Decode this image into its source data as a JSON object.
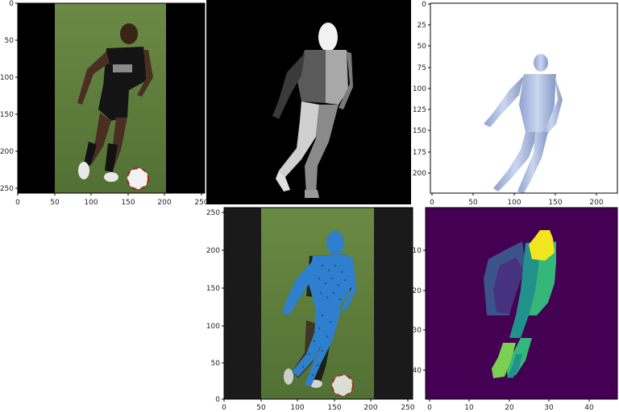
{
  "panels": [
    {
      "id": "photo",
      "x_ticks": [
        "0",
        "50",
        "100",
        "150",
        "200",
        "250"
      ],
      "y_ticks": [
        "0",
        "50",
        "100",
        "150",
        "200",
        "250"
      ]
    },
    {
      "id": "segmentation"
    },
    {
      "id": "mesh-render",
      "x_ticks": [
        "0",
        "50",
        "100",
        "150",
        "200"
      ],
      "y_ticks": [
        "0",
        "25",
        "50",
        "75",
        "100",
        "125",
        "150",
        "175",
        "200"
      ]
    },
    {
      "id": "mesh-overlay",
      "x_ticks": [
        "0",
        "50",
        "100",
        "150",
        "200",
        "250"
      ],
      "y_ticks": [
        "0",
        "50",
        "100",
        "150",
        "200",
        "250"
      ]
    },
    {
      "id": "heatmap",
      "x_ticks": [
        "0",
        "10",
        "20",
        "30",
        "40"
      ],
      "y_ticks": [
        "10",
        "20",
        "30",
        "40"
      ]
    }
  ],
  "colors": {
    "grass": "#5f7f3a",
    "jersey": "#141414",
    "skin": "#4a2e22",
    "mesh": "#b7c6e6",
    "overlay": "#2f7fcf",
    "heatmap_bg": "#440154",
    "heatmap_yellow": "#f1e51d",
    "heatmap_green": "#35b779",
    "heatmap_teal": "#21918c",
    "heatmap_blue": "#3b528b"
  }
}
